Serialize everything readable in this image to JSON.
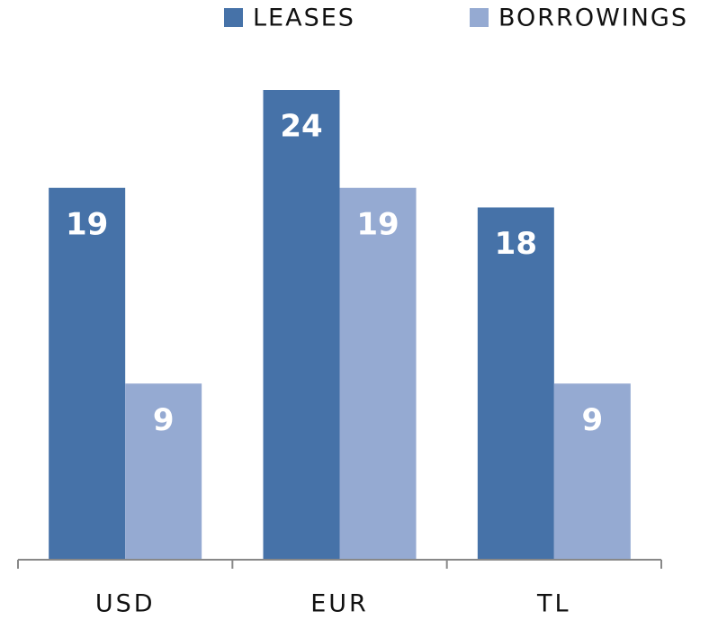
{
  "chart_data": {
    "type": "bar",
    "categories": [
      "USD",
      "EUR",
      "TL"
    ],
    "series": [
      {
        "name": "LEASES",
        "color": "#4672a8",
        "values": [
          19,
          24,
          18
        ]
      },
      {
        "name": "BORROWINGS",
        "color": "#95aad2",
        "values": [
          9,
          19,
          9
        ]
      }
    ],
    "legend": "top"
  }
}
